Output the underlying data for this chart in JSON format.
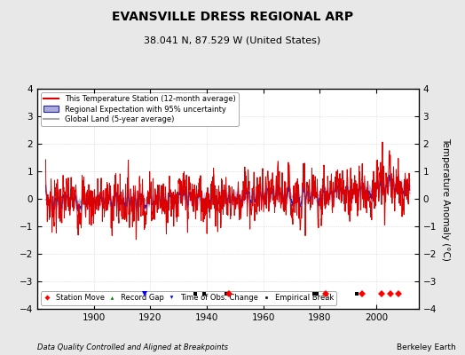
{
  "title": "EVANSVILLE DRESS REGIONAL ARP",
  "subtitle": "38.041 N, 87.529 W (United States)",
  "xlabel_bottom": "Data Quality Controlled and Aligned at Breakpoints",
  "xlabel_right": "Berkeley Earth",
  "ylabel": "Temperature Anomaly (°C)",
  "ylim": [
    -4,
    4
  ],
  "xlim": [
    1880,
    2015
  ],
  "xticks": [
    1900,
    1920,
    1940,
    1960,
    1980,
    2000
  ],
  "yticks": [
    -4,
    -3,
    -2,
    -1,
    0,
    1,
    2,
    3,
    4
  ],
  "background_color": "#e8e8e8",
  "plot_bg_color": "#ffffff",
  "station_color": "#dd0000",
  "regional_color": "#2222bb",
  "regional_fill_color": "#aaaadd",
  "global_color": "#aaaaaa",
  "station_move_years": [
    1948,
    1982,
    1995,
    2002,
    2005,
    2008
  ],
  "empirical_break_years": [
    1936,
    1939,
    1947,
    1978,
    1979,
    1993
  ],
  "obs_change_years": [
    1918
  ],
  "record_gap_years": [],
  "start_year": 1883,
  "end_year": 2011,
  "figwidth": 5.24,
  "figheight": 4.0,
  "dpi": 100
}
